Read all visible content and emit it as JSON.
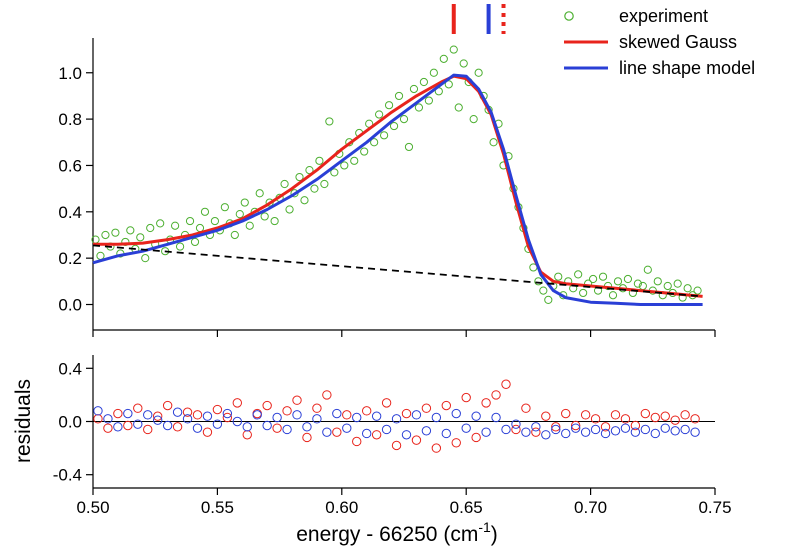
{
  "chart_data": {
    "type": "scatter",
    "xlabel_prefix": "energy - 66250 (cm",
    "xlabel_sup": "-1",
    "xlabel_suffix": ")",
    "xlim": [
      0.5,
      0.75
    ],
    "x_ticks": [
      "0.50",
      "0.55",
      "0.60",
      "0.65",
      "0.70",
      "0.75"
    ],
    "x_tick_values": [
      0.5,
      0.55,
      0.6,
      0.65,
      0.7,
      0.75
    ],
    "colors": {
      "experiment": "#4caf30",
      "skewed": "#e8241c",
      "lineshape": "#2a3fd6",
      "baseline": "#000000"
    },
    "legend": {
      "experiment": "experiment",
      "skewed": "skewed Gauss",
      "lineshape": "line shape model"
    },
    "top_panel": {
      "ylabel": "",
      "ylim": [
        -0.11,
        1.15
      ],
      "y_ticks": [
        "0.0",
        "0.2",
        "0.4",
        "0.6",
        "0.8",
        "1.0"
      ],
      "y_tick_values": [
        0.0,
        0.2,
        0.4,
        0.6,
        0.8,
        1.0
      ],
      "series": [
        {
          "name": "skewed Gauss",
          "style": "line",
          "x": [
            0.5,
            0.51,
            0.52,
            0.53,
            0.54,
            0.55,
            0.56,
            0.57,
            0.58,
            0.59,
            0.6,
            0.61,
            0.62,
            0.63,
            0.64,
            0.645,
            0.65,
            0.655,
            0.66,
            0.665,
            0.67,
            0.675,
            0.68,
            0.685,
            0.69,
            0.7,
            0.71,
            0.72,
            0.73,
            0.745
          ],
          "y": [
            0.26,
            0.26,
            0.265,
            0.28,
            0.3,
            0.33,
            0.37,
            0.43,
            0.5,
            0.58,
            0.67,
            0.75,
            0.83,
            0.9,
            0.96,
            0.985,
            0.975,
            0.92,
            0.82,
            0.65,
            0.44,
            0.25,
            0.14,
            0.1,
            0.09,
            0.08,
            0.07,
            0.06,
            0.05,
            0.035
          ]
        },
        {
          "name": "line shape model",
          "style": "line",
          "x": [
            0.5,
            0.51,
            0.52,
            0.53,
            0.54,
            0.55,
            0.56,
            0.57,
            0.58,
            0.59,
            0.6,
            0.61,
            0.62,
            0.63,
            0.64,
            0.645,
            0.65,
            0.655,
            0.66,
            0.665,
            0.67,
            0.675,
            0.68,
            0.685,
            0.69,
            0.7,
            0.71,
            0.72,
            0.73,
            0.745
          ],
          "y": [
            0.18,
            0.21,
            0.23,
            0.26,
            0.29,
            0.32,
            0.36,
            0.41,
            0.47,
            0.54,
            0.62,
            0.7,
            0.79,
            0.87,
            0.95,
            0.99,
            0.985,
            0.93,
            0.83,
            0.67,
            0.47,
            0.28,
            0.13,
            0.06,
            0.03,
            0.01,
            0.005,
            0.0,
            0.0,
            0.0
          ]
        },
        {
          "name": "baseline",
          "style": "dashed",
          "x": [
            0.5,
            0.745
          ],
          "y": [
            0.255,
            0.035
          ]
        }
      ],
      "experiment_points": [
        [
          0.501,
          0.28
        ],
        [
          0.503,
          0.21
        ],
        [
          0.505,
          0.3
        ],
        [
          0.507,
          0.25
        ],
        [
          0.509,
          0.31
        ],
        [
          0.511,
          0.22
        ],
        [
          0.513,
          0.27
        ],
        [
          0.515,
          0.32
        ],
        [
          0.517,
          0.24
        ],
        [
          0.519,
          0.29
        ],
        [
          0.521,
          0.2
        ],
        [
          0.523,
          0.33
        ],
        [
          0.525,
          0.26
        ],
        [
          0.527,
          0.35
        ],
        [
          0.529,
          0.23
        ],
        [
          0.531,
          0.28
        ],
        [
          0.533,
          0.34
        ],
        [
          0.535,
          0.25
        ],
        [
          0.537,
          0.3
        ],
        [
          0.539,
          0.36
        ],
        [
          0.541,
          0.27
        ],
        [
          0.543,
          0.33
        ],
        [
          0.545,
          0.4
        ],
        [
          0.547,
          0.3
        ],
        [
          0.549,
          0.36
        ],
        [
          0.551,
          0.32
        ],
        [
          0.553,
          0.42
        ],
        [
          0.555,
          0.35
        ],
        [
          0.557,
          0.3
        ],
        [
          0.559,
          0.39
        ],
        [
          0.561,
          0.44
        ],
        [
          0.563,
          0.34
        ],
        [
          0.565,
          0.4
        ],
        [
          0.567,
          0.48
        ],
        [
          0.569,
          0.38
        ],
        [
          0.571,
          0.44
        ],
        [
          0.573,
          0.36
        ],
        [
          0.575,
          0.46
        ],
        [
          0.577,
          0.52
        ],
        [
          0.579,
          0.41
        ],
        [
          0.581,
          0.48
        ],
        [
          0.583,
          0.55
        ],
        [
          0.585,
          0.45
        ],
        [
          0.587,
          0.58
        ],
        [
          0.589,
          0.5
        ],
        [
          0.591,
          0.62
        ],
        [
          0.593,
          0.52
        ],
        [
          0.595,
          0.79
        ],
        [
          0.597,
          0.57
        ],
        [
          0.599,
          0.65
        ],
        [
          0.601,
          0.6
        ],
        [
          0.603,
          0.7
        ],
        [
          0.605,
          0.62
        ],
        [
          0.607,
          0.74
        ],
        [
          0.609,
          0.66
        ],
        [
          0.611,
          0.78
        ],
        [
          0.613,
          0.7
        ],
        [
          0.615,
          0.82
        ],
        [
          0.617,
          0.73
        ],
        [
          0.619,
          0.86
        ],
        [
          0.621,
          0.77
        ],
        [
          0.623,
          0.9
        ],
        [
          0.625,
          0.8
        ],
        [
          0.627,
          0.68
        ],
        [
          0.629,
          0.93
        ],
        [
          0.631,
          0.85
        ],
        [
          0.633,
          0.96
        ],
        [
          0.635,
          0.88
        ],
        [
          0.637,
          1.0
        ],
        [
          0.639,
          0.92
        ],
        [
          0.641,
          1.06
        ],
        [
          0.643,
          0.95
        ],
        [
          0.645,
          1.1
        ],
        [
          0.647,
          0.85
        ],
        [
          0.649,
          1.04
        ],
        [
          0.651,
          0.96
        ],
        [
          0.653,
          0.8
        ],
        [
          0.655,
          1.0
        ],
        [
          0.657,
          0.9
        ],
        [
          0.659,
          0.84
        ],
        [
          0.661,
          0.7
        ],
        [
          0.663,
          0.78
        ],
        [
          0.665,
          0.6
        ],
        [
          0.667,
          0.64
        ],
        [
          0.669,
          0.5
        ],
        [
          0.671,
          0.42
        ],
        [
          0.673,
          0.33
        ],
        [
          0.675,
          0.24
        ],
        [
          0.677,
          0.16
        ],
        [
          0.679,
          0.1
        ],
        [
          0.681,
          0.06
        ],
        [
          0.683,
          0.02
        ],
        [
          0.685,
          0.08
        ],
        [
          0.687,
          0.12
        ],
        [
          0.689,
          0.04
        ],
        [
          0.691,
          0.1
        ],
        [
          0.693,
          0.07
        ],
        [
          0.695,
          0.13
        ],
        [
          0.697,
          0.05
        ],
        [
          0.699,
          0.09
        ],
        [
          0.701,
          0.11
        ],
        [
          0.703,
          0.06
        ],
        [
          0.705,
          0.12
        ],
        [
          0.707,
          0.08
        ],
        [
          0.709,
          0.04
        ],
        [
          0.711,
          0.1
        ],
        [
          0.713,
          0.07
        ],
        [
          0.715,
          0.11
        ],
        [
          0.717,
          0.05
        ],
        [
          0.719,
          0.09
        ],
        [
          0.721,
          0.08
        ],
        [
          0.723,
          0.15
        ],
        [
          0.725,
          0.06
        ],
        [
          0.727,
          0.1
        ],
        [
          0.729,
          0.04
        ],
        [
          0.731,
          0.08
        ],
        [
          0.733,
          0.05
        ],
        [
          0.735,
          0.09
        ],
        [
          0.737,
          0.03
        ],
        [
          0.739,
          0.07
        ],
        [
          0.741,
          0.04
        ],
        [
          0.743,
          0.06
        ]
      ]
    },
    "bottom_panel": {
      "ylabel": "residuals",
      "ylim": [
        -0.5,
        0.5
      ],
      "y_ticks": [
        "0.4",
        "0.0",
        "-0.4"
      ],
      "y_tick_values": [
        0.4,
        0.0,
        -0.4
      ],
      "zero_line": 0.0,
      "residuals_skewed": [
        [
          0.502,
          0.02
        ],
        [
          0.506,
          -0.05
        ],
        [
          0.51,
          0.06
        ],
        [
          0.514,
          -0.03
        ],
        [
          0.518,
          0.1
        ],
        [
          0.522,
          -0.06
        ],
        [
          0.526,
          0.04
        ],
        [
          0.53,
          0.12
        ],
        [
          0.534,
          -0.04
        ],
        [
          0.538,
          0.07
        ],
        [
          0.542,
          0.05
        ],
        [
          0.546,
          -0.08
        ],
        [
          0.55,
          0.09
        ],
        [
          0.554,
          0.03
        ],
        [
          0.558,
          0.14
        ],
        [
          0.562,
          -0.1
        ],
        [
          0.566,
          0.06
        ],
        [
          0.57,
          0.12
        ],
        [
          0.574,
          -0.05
        ],
        [
          0.578,
          0.08
        ],
        [
          0.582,
          0.16
        ],
        [
          0.586,
          -0.12
        ],
        [
          0.59,
          0.1
        ],
        [
          0.594,
          0.2
        ],
        [
          0.598,
          -0.08
        ],
        [
          0.602,
          0.05
        ],
        [
          0.606,
          -0.15
        ],
        [
          0.61,
          0.08
        ],
        [
          0.614,
          -0.1
        ],
        [
          0.618,
          0.14
        ],
        [
          0.622,
          -0.18
        ],
        [
          0.626,
          0.06
        ],
        [
          0.63,
          -0.14
        ],
        [
          0.634,
          0.1
        ],
        [
          0.638,
          -0.2
        ],
        [
          0.642,
          0.12
        ],
        [
          0.646,
          -0.16
        ],
        [
          0.65,
          0.18
        ],
        [
          0.654,
          -0.12
        ],
        [
          0.658,
          0.14
        ],
        [
          0.662,
          0.2
        ],
        [
          0.666,
          0.28
        ],
        [
          0.67,
          -0.06
        ],
        [
          0.674,
          0.1
        ],
        [
          0.678,
          -0.08
        ],
        [
          0.682,
          0.04
        ],
        [
          0.686,
          -0.04
        ],
        [
          0.69,
          0.06
        ],
        [
          0.694,
          -0.03
        ],
        [
          0.698,
          0.05
        ],
        [
          0.702,
          0.02
        ],
        [
          0.706,
          -0.04
        ],
        [
          0.71,
          0.05
        ],
        [
          0.714,
          0.02
        ],
        [
          0.718,
          -0.03
        ],
        [
          0.722,
          0.06
        ],
        [
          0.726,
          0.03
        ],
        [
          0.73,
          0.04
        ],
        [
          0.734,
          0.01
        ],
        [
          0.738,
          0.05
        ],
        [
          0.742,
          0.02
        ]
      ],
      "residuals_lineshape": [
        [
          0.502,
          0.08
        ],
        [
          0.506,
          0.02
        ],
        [
          0.51,
          -0.04
        ],
        [
          0.514,
          0.06
        ],
        [
          0.518,
          -0.02
        ],
        [
          0.522,
          0.05
        ],
        [
          0.526,
          0.01
        ],
        [
          0.53,
          -0.03
        ],
        [
          0.534,
          0.07
        ],
        [
          0.538,
          0.02
        ],
        [
          0.542,
          -0.05
        ],
        [
          0.546,
          0.04
        ],
        [
          0.55,
          -0.02
        ],
        [
          0.554,
          0.06
        ],
        [
          0.558,
          0.0
        ],
        [
          0.562,
          -0.04
        ],
        [
          0.566,
          0.05
        ],
        [
          0.57,
          -0.03
        ],
        [
          0.574,
          0.03
        ],
        [
          0.578,
          -0.06
        ],
        [
          0.582,
          0.05
        ],
        [
          0.586,
          -0.04
        ],
        [
          0.59,
          0.02
        ],
        [
          0.594,
          -0.08
        ],
        [
          0.598,
          0.06
        ],
        [
          0.602,
          -0.05
        ],
        [
          0.606,
          0.03
        ],
        [
          0.61,
          -0.09
        ],
        [
          0.614,
          0.04
        ],
        [
          0.618,
          -0.06
        ],
        [
          0.622,
          0.02
        ],
        [
          0.626,
          -0.1
        ],
        [
          0.63,
          0.05
        ],
        [
          0.634,
          -0.07
        ],
        [
          0.638,
          0.03
        ],
        [
          0.642,
          -0.09
        ],
        [
          0.646,
          0.06
        ],
        [
          0.65,
          -0.05
        ],
        [
          0.654,
          0.04
        ],
        [
          0.658,
          -0.08
        ],
        [
          0.662,
          0.03
        ],
        [
          0.666,
          -0.06
        ],
        [
          0.67,
          -0.02
        ],
        [
          0.674,
          -0.08
        ],
        [
          0.678,
          -0.04
        ],
        [
          0.682,
          -0.1
        ],
        [
          0.686,
          -0.06
        ],
        [
          0.69,
          -0.09
        ],
        [
          0.694,
          -0.05
        ],
        [
          0.698,
          -0.08
        ],
        [
          0.702,
          -0.06
        ],
        [
          0.706,
          -0.09
        ],
        [
          0.71,
          -0.07
        ],
        [
          0.714,
          -0.05
        ],
        [
          0.718,
          -0.08
        ],
        [
          0.722,
          -0.06
        ],
        [
          0.726,
          -0.09
        ],
        [
          0.73,
          -0.05
        ],
        [
          0.734,
          -0.07
        ],
        [
          0.738,
          -0.06
        ],
        [
          0.742,
          -0.08
        ]
      ]
    },
    "markers": [
      {
        "x": 0.645,
        "color": "#e8241c",
        "style": "solid"
      },
      {
        "x": 0.659,
        "color": "#2a3fd6",
        "style": "solid"
      },
      {
        "x": 0.665,
        "color": "#e8241c",
        "style": "dotted"
      }
    ]
  }
}
